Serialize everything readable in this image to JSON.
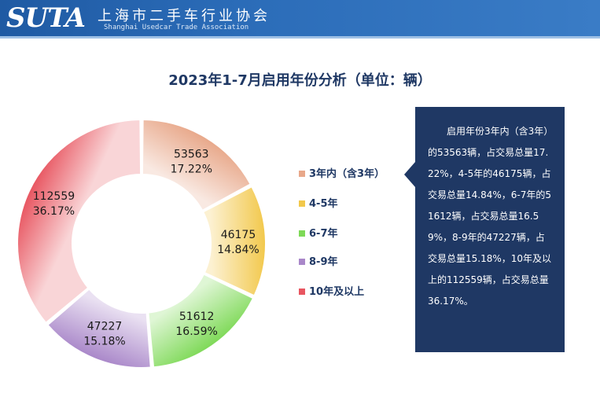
{
  "header": {
    "logo": "SUTA",
    "org_name_cn": "上海市二手车行业协会",
    "org_name_en": "Shanghai Usedcar Trade Association"
  },
  "colors": {
    "header_bg": "#2b6cb8",
    "note_bg": "#1f3864",
    "title_text": "#1f3864"
  },
  "chart_data": {
    "type": "pie",
    "style": "donut",
    "title": "2023年1-7月启用年份分析（单位：辆）",
    "legend_position": "right",
    "categories": [
      "3年内（含3年）",
      "4-5年",
      "6-7年",
      "8-9年",
      "10年及以上"
    ],
    "values": [
      53563,
      46175,
      51612,
      47227,
      112559
    ],
    "percent_labels": [
      "17.22%",
      "14.84%",
      "16.59%",
      "15.18%",
      "36.17%"
    ],
    "value_labels": [
      "53563",
      "46175",
      "51612",
      "47227",
      "112559"
    ],
    "colors": [
      "#e8a88a",
      "#f2c84b",
      "#7ed957",
      "#a987c9",
      "#e85560"
    ]
  },
  "legend": {
    "items": [
      "3年内（含3年）",
      "4-5年",
      "6-7年",
      "8-9年",
      "10年及以上"
    ]
  },
  "note": {
    "text": "启用年份3年内（含3年）的53563辆，占交易总量17.22%，4-5年的46175辆，占交易总量14.84%，6-7年的51612辆，占交易总量16.59%，8-9年的47227辆，占交易总量15.18%，10年及以上的112559辆，占交易总量36.17%。"
  }
}
